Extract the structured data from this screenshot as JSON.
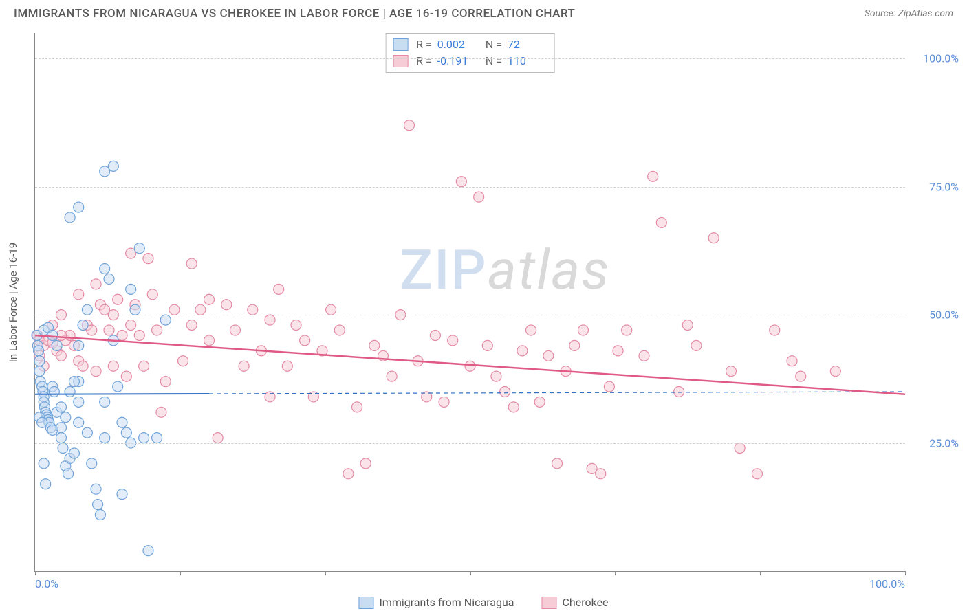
{
  "header": {
    "title": "IMMIGRANTS FROM NICARAGUA VS CHEROKEE IN LABOR FORCE | AGE 16-19 CORRELATION CHART",
    "source": "Source: ZipAtlas.com"
  },
  "chart": {
    "type": "scatter",
    "ylabel": "In Labor Force | Age 16-19",
    "xlim": [
      0,
      100
    ],
    "ylim": [
      0,
      105
    ],
    "xtick_positions": [
      0,
      16.67,
      33.33,
      50,
      66.67,
      83.33,
      100
    ],
    "xtick_labels": [
      "0.0%",
      "",
      "",
      "",
      "",
      "",
      "100.0%"
    ],
    "ytick_positions": [
      25,
      50,
      75,
      100
    ],
    "ytick_labels": [
      "25.0%",
      "50.0%",
      "75.0%",
      "100.0%"
    ],
    "background_color": "#ffffff",
    "grid_color": "#d8d8d8",
    "axis_color": "#888888",
    "label_color": "#5b8fd6",
    "marker_radius": 7.5,
    "marker_stroke_width": 1.2,
    "series": [
      {
        "name": "Immigrants from Nicaragua",
        "fill": "#c9ddf2",
        "stroke": "#6fa3d9",
        "fill_opacity": 0.55,
        "R": "0.002",
        "N": "72",
        "trend": {
          "y_at_x0": 34.5,
          "y_at_x100": 35.0,
          "solid_until_x": 20,
          "color": "#2f6fc4",
          "width": 2
        },
        "points": [
          [
            0.2,
            46
          ],
          [
            0.3,
            44
          ],
          [
            0.4,
            43
          ],
          [
            0.5,
            41
          ],
          [
            0.5,
            39
          ],
          [
            0.6,
            37
          ],
          [
            0.8,
            36
          ],
          [
            0.9,
            35
          ],
          [
            1,
            34
          ],
          [
            1,
            33
          ],
          [
            1.1,
            32
          ],
          [
            1.2,
            31
          ],
          [
            1.3,
            30.5
          ],
          [
            1.4,
            30
          ],
          [
            1.5,
            29.5
          ],
          [
            1.6,
            29
          ],
          [
            1.8,
            28
          ],
          [
            2,
            27.5
          ],
          [
            2,
            36
          ],
          [
            2.2,
            35
          ],
          [
            2.5,
            31
          ],
          [
            3,
            28
          ],
          [
            3,
            26
          ],
          [
            3.2,
            24
          ],
          [
            3.5,
            20.5
          ],
          [
            3.8,
            19
          ],
          [
            4,
            22
          ],
          [
            4.5,
            23
          ],
          [
            5,
            29
          ],
          [
            5,
            33
          ],
          [
            5,
            37
          ],
          [
            5,
            44
          ],
          [
            5.5,
            48
          ],
          [
            6,
            51
          ],
          [
            6,
            27
          ],
          [
            6.5,
            21
          ],
          [
            7,
            16
          ],
          [
            7.2,
            13
          ],
          [
            7.5,
            11
          ],
          [
            8,
            26
          ],
          [
            8,
            33
          ],
          [
            8,
            59
          ],
          [
            8.5,
            57
          ],
          [
            9,
            45
          ],
          [
            9.5,
            36
          ],
          [
            10,
            15
          ],
          [
            10,
            29
          ],
          [
            10.5,
            27
          ],
          [
            11,
            25
          ],
          [
            11,
            55
          ],
          [
            11.5,
            51
          ],
          [
            12,
            63
          ],
          [
            12.5,
            26
          ],
          [
            13,
            4
          ],
          [
            14,
            26
          ],
          [
            15,
            49
          ],
          [
            4,
            69
          ],
          [
            5,
            71
          ],
          [
            8,
            78
          ],
          [
            9,
            79
          ],
          [
            1,
            47
          ],
          [
            1.5,
            47.5
          ],
          [
            2,
            46
          ],
          [
            2.5,
            44
          ],
          [
            3,
            32
          ],
          [
            3.5,
            30
          ],
          [
            4,
            35
          ],
          [
            4.5,
            37
          ],
          [
            0.5,
            30
          ],
          [
            0.8,
            29
          ],
          [
            1,
            21
          ],
          [
            1.2,
            17
          ]
        ]
      },
      {
        "name": "Cherokee",
        "fill": "#f6cdd7",
        "stroke": "#e48aa5",
        "fill_opacity": 0.55,
        "R": "-0.191",
        "N": "110",
        "trend": {
          "y_at_x0": 46,
          "y_at_x100": 34.5,
          "solid_until_x": 100,
          "color": "#e05a86",
          "width": 2.5
        },
        "points": [
          [
            0.3,
            46
          ],
          [
            0.5,
            45
          ],
          [
            1,
            44
          ],
          [
            1.5,
            45
          ],
          [
            2,
            44.5
          ],
          [
            2.5,
            43
          ],
          [
            3,
            42
          ],
          [
            3.5,
            45
          ],
          [
            4,
            46
          ],
          [
            4.5,
            44
          ],
          [
            5,
            41
          ],
          [
            5.5,
            40
          ],
          [
            6,
            48
          ],
          [
            6.5,
            47
          ],
          [
            7,
            39
          ],
          [
            7.5,
            52
          ],
          [
            8,
            51
          ],
          [
            8.5,
            47
          ],
          [
            9,
            50
          ],
          [
            9.5,
            53
          ],
          [
            10,
            46
          ],
          [
            10.5,
            38
          ],
          [
            11,
            48
          ],
          [
            11.5,
            52
          ],
          [
            12,
            46
          ],
          [
            12.5,
            40
          ],
          [
            13,
            61
          ],
          [
            13.5,
            54
          ],
          [
            14,
            47
          ],
          [
            14.5,
            31
          ],
          [
            15,
            37
          ],
          [
            16,
            51
          ],
          [
            17,
            41
          ],
          [
            18,
            48
          ],
          [
            18,
            60
          ],
          [
            19,
            51
          ],
          [
            20,
            45
          ],
          [
            20,
            53
          ],
          [
            21,
            26
          ],
          [
            22,
            52
          ],
          [
            23,
            47
          ],
          [
            24,
            40
          ],
          [
            25,
            51
          ],
          [
            26,
            43
          ],
          [
            27,
            34
          ],
          [
            27,
            49
          ],
          [
            28,
            55
          ],
          [
            29,
            40
          ],
          [
            30,
            48
          ],
          [
            31,
            45
          ],
          [
            32,
            34
          ],
          [
            33,
            43
          ],
          [
            34,
            51
          ],
          [
            35,
            47
          ],
          [
            36,
            19
          ],
          [
            37,
            32
          ],
          [
            38,
            21
          ],
          [
            39,
            44
          ],
          [
            40,
            42
          ],
          [
            41,
            38
          ],
          [
            42,
            50
          ],
          [
            43,
            87
          ],
          [
            44,
            41
          ],
          [
            45,
            34
          ],
          [
            46,
            46
          ],
          [
            47,
            33
          ],
          [
            48,
            45
          ],
          [
            49,
            76
          ],
          [
            50,
            40
          ],
          [
            51,
            73
          ],
          [
            52,
            44
          ],
          [
            53,
            38
          ],
          [
            54,
            35
          ],
          [
            55,
            32
          ],
          [
            56,
            43
          ],
          [
            57,
            47
          ],
          [
            58,
            33
          ],
          [
            59,
            42
          ],
          [
            60,
            21
          ],
          [
            61,
            39
          ],
          [
            62,
            44
          ],
          [
            63,
            47
          ],
          [
            64,
            20
          ],
          [
            65,
            19
          ],
          [
            66,
            36
          ],
          [
            67,
            43
          ],
          [
            68,
            47
          ],
          [
            70,
            42
          ],
          [
            71,
            77
          ],
          [
            72,
            68
          ],
          [
            74,
            35
          ],
          [
            75,
            48
          ],
          [
            76,
            44
          ],
          [
            78,
            65
          ],
          [
            80,
            39
          ],
          [
            81,
            24
          ],
          [
            83,
            19
          ],
          [
            85,
            47
          ],
          [
            87,
            41
          ],
          [
            88,
            38
          ],
          [
            92,
            39
          ],
          [
            3,
            50
          ],
          [
            5,
            54
          ],
          [
            7,
            56
          ],
          [
            9,
            40
          ],
          [
            11,
            62
          ],
          [
            0.5,
            42
          ],
          [
            1,
            40
          ],
          [
            2,
            48
          ],
          [
            3,
            46
          ]
        ]
      }
    ],
    "legend": {
      "series1_label": "Immigrants from Nicaragua",
      "series2_label": "Cherokee"
    },
    "stats_labels": {
      "R": "R =",
      "N": "N ="
    }
  },
  "watermark": {
    "zip": "ZIP",
    "atlas": "atlas"
  }
}
